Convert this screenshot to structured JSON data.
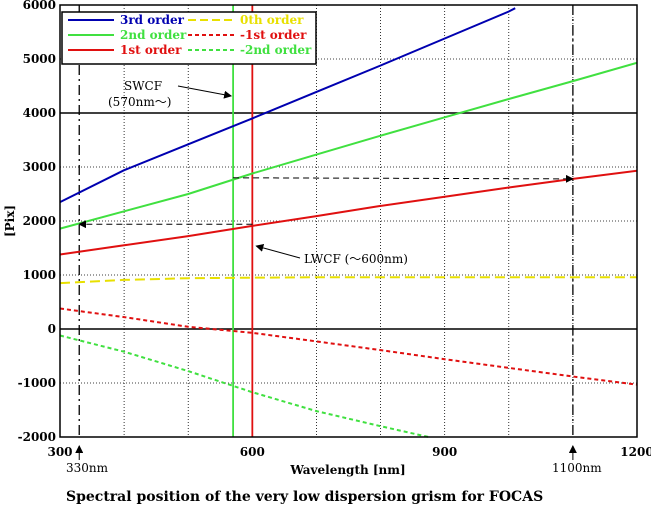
{
  "chart_data": {
    "type": "line",
    "title": "Spectral position of the very low dispersion grism for FOCAS",
    "xlabel": "Wavelength [nm]",
    "ylabel": "[Pix]",
    "xlim": [
      300,
      1200
    ],
    "ylim": [
      -2000,
      6000
    ],
    "x_ticks": [
      300,
      600,
      900,
      1200
    ],
    "y_ticks": [
      -2000,
      -1000,
      0,
      1000,
      2000,
      3000,
      4000,
      5000,
      6000
    ],
    "grid": true,
    "legend_position": "top-left",
    "series": [
      {
        "name": "3rd order",
        "color": "#0000b0",
        "dash": "solid",
        "x": [
          300,
          400,
          500,
          600,
          700,
          800,
          900,
          1000,
          1010
        ],
        "y": [
          2350,
          2940,
          3420,
          3900,
          4390,
          4880,
          5380,
          5880,
          5940
        ]
      },
      {
        "name": "2nd order",
        "color": "#40e040",
        "dash": "solid",
        "x": [
          300,
          400,
          500,
          600,
          700,
          800,
          900,
          1000,
          1100,
          1200
        ],
        "y": [
          1860,
          2180,
          2500,
          2880,
          3230,
          3580,
          3920,
          4260,
          4590,
          4930
        ]
      },
      {
        "name": "1st order",
        "color": "#e01010",
        "dash": "solid",
        "x": [
          300,
          400,
          500,
          600,
          700,
          800,
          900,
          1000,
          1100,
          1200
        ],
        "y": [
          1380,
          1550,
          1720,
          1910,
          2090,
          2280,
          2450,
          2620,
          2780,
          2930
        ]
      },
      {
        "name": "0th order",
        "color": "#e8e000",
        "dash": "dash",
        "x": [
          300,
          400,
          500,
          600,
          700,
          800,
          900,
          1000,
          1100,
          1200
        ],
        "y": [
          850,
          910,
          940,
          950,
          960,
          960,
          960,
          960,
          960,
          960
        ]
      },
      {
        "name": "-1st order",
        "color": "#e01010",
        "dash": "dot",
        "x": [
          300,
          400,
          500,
          600,
          700,
          800,
          900,
          1000,
          1100,
          1200
        ],
        "y": [
          380,
          220,
          40,
          -70,
          -230,
          -390,
          -560,
          -720,
          -880,
          -1030
        ]
      },
      {
        "name": "-2nd order",
        "color": "#40e040",
        "dash": "dot",
        "x": [
          300,
          400,
          500,
          600,
          700,
          800,
          875
        ],
        "y": [
          -120,
          -420,
          -780,
          -1170,
          -1520,
          -1800,
          -2000
        ]
      }
    ],
    "reference_lines": {
      "horizontal": [
        0,
        4000
      ],
      "vertical_solid": [
        {
          "x": 570,
          "color": "#40e040"
        },
        {
          "x": 600,
          "color": "#e01010"
        }
      ],
      "vertical_dashdot": [
        330,
        1100
      ]
    },
    "arrows": [
      {
        "from": [
          570,
          2800
        ],
        "to": [
          1100,
          2780
        ]
      },
      {
        "from": [
          600,
          1940
        ],
        "to": [
          330,
          1940
        ]
      }
    ],
    "annotations": [
      {
        "label": "SWCF",
        "sub": "(570nm〜)"
      },
      {
        "label": "LWCF (〜600nm)"
      },
      {
        "label": "330nm"
      },
      {
        "label": "1100nm"
      }
    ]
  }
}
